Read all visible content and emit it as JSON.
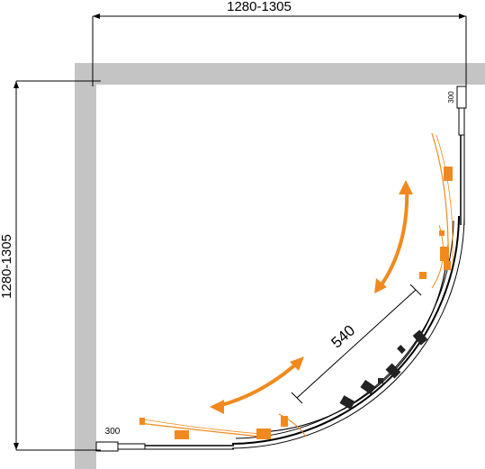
{
  "dimensions": {
    "top_width": "1280-1305",
    "left_height": "1280-1305",
    "door_opening": "540",
    "profile_top_right": "300",
    "profile_bottom_left": "300"
  },
  "colors": {
    "wall": "#c4c4c4",
    "lines": "#000000",
    "door_motion": "#f08a1e"
  }
}
